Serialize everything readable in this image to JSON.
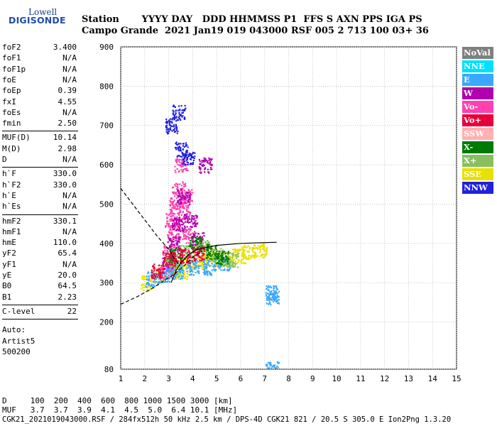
{
  "logo": {
    "line1": "Lowell",
    "line2": "DIGISONDE"
  },
  "header": {
    "row1": "Station       YYYY DAY   DDD HHMMSS P1  FFS S AXN PPS IGA PS",
    "row2": "Campo Grande  2021 Jan19 019 043000 RSF 005 2 713 100 03+ 36"
  },
  "sidebar": {
    "group1": [
      {
        "label": "foF2",
        "value": "3.400"
      },
      {
        "label": "foF1",
        "value": "N/A"
      },
      {
        "label": "foF1p",
        "value": "N/A"
      },
      {
        "label": "foE",
        "value": "N/A"
      },
      {
        "label": "foEp",
        "value": "0.39"
      },
      {
        "label": "fxI",
        "value": "4.55"
      },
      {
        "label": "foEs",
        "value": "N/A"
      },
      {
        "label": "fmin",
        "value": "2.50"
      }
    ],
    "group2": [
      {
        "label": "MUF(D)",
        "value": "10.14"
      },
      {
        "label": "M(D)",
        "value": "2.98"
      },
      {
        "label": "D",
        "value": "N/A"
      }
    ],
    "group3": [
      {
        "label": "h`F",
        "value": "330.0"
      },
      {
        "label": "h`F2",
        "value": "330.0"
      },
      {
        "label": "h`E",
        "value": "N/A"
      },
      {
        "label": "h`Es",
        "value": "N/A"
      }
    ],
    "group4": [
      {
        "label": "hmF2",
        "value": "330.1"
      },
      {
        "label": "hmF1",
        "value": "N/A"
      },
      {
        "label": "hmE",
        "value": "110.0"
      },
      {
        "label": "yF2",
        "value": "65.4"
      },
      {
        "label": "yF1",
        "value": "N/A"
      },
      {
        "label": "yE",
        "value": "20.0"
      },
      {
        "label": "B0",
        "value": "64.5"
      },
      {
        "label": "B1",
        "value": "2.23"
      }
    ],
    "clevel": {
      "label": "C-level",
      "value": "22"
    },
    "footer": [
      "Auto:",
      "Artist5",
      "500200"
    ]
  },
  "legend": [
    {
      "label": "NoVal",
      "color": "#808080"
    },
    {
      "label": "NNE",
      "color": "#00e0ff"
    },
    {
      "label": "E",
      "color": "#3aa8ff"
    },
    {
      "label": "W",
      "color": "#b000b0"
    },
    {
      "label": "Vo-",
      "color": "#ff40b0"
    },
    {
      "label": "Vo+",
      "color": "#e8003a"
    },
    {
      "label": "SSW",
      "color": "#ffb0b0"
    },
    {
      "label": "X-",
      "color": "#007a00"
    },
    {
      "label": "X+",
      "color": "#88c060"
    },
    {
      "label": "SSE",
      "color": "#e8e000"
    },
    {
      "label": "NNW",
      "color": "#2020e0"
    }
  ],
  "bottom": {
    "line1": "D     100  200  400  600  800 1000 1500 3000 [km]",
    "line2": "MUF   3.7  3.7  3.9  4.1  4.5  5.0  6.4 10.1 [MHz]",
    "line3": "CGK21_2021019043000.RSF / 284fx512h 50 kHz 2.5 km / DPS-4D CGK21 821 / 20.5 S 305.0 E Ion2Png 1.3.20"
  },
  "chart_data": {
    "type": "scatter",
    "xlim": [
      1,
      15
    ],
    "ylim": [
      80,
      900
    ],
    "x_ticks": [
      "1",
      "2",
      "3",
      "4",
      "5",
      "6",
      "7",
      "8",
      "9",
      "10",
      "11",
      "12",
      "13",
      "14",
      "15"
    ],
    "y_ticks": [
      "900",
      "800",
      "700",
      "600",
      "500",
      "400",
      "300",
      "200",
      "80"
    ],
    "grid": true,
    "series": [
      {
        "color": "#e8e000",
        "points": [
          [
            2.1,
            300
          ],
          [
            2.6,
            320
          ],
          [
            3.2,
            340
          ],
          [
            3.8,
            350
          ],
          [
            4.3,
            355
          ],
          [
            4.8,
            360
          ],
          [
            5.4,
            360
          ],
          [
            5.9,
            370
          ],
          [
            6.3,
            380
          ],
          [
            6.8,
            385
          ],
          [
            3.5,
            330
          ],
          [
            4.6,
            370
          ]
        ]
      },
      {
        "color": "#ff40b0",
        "points": [
          [
            2.9,
            330
          ],
          [
            3.0,
            380
          ],
          [
            3.2,
            430
          ],
          [
            3.3,
            500
          ],
          [
            3.4,
            540
          ],
          [
            3.6,
            480
          ],
          [
            3.8,
            420
          ],
          [
            3.1,
            460
          ],
          [
            3.5,
            600
          ],
          [
            3.7,
            520
          ]
        ]
      },
      {
        "color": "#b000b0",
        "points": [
          [
            3.0,
            350
          ],
          [
            3.2,
            400
          ],
          [
            3.4,
            450
          ],
          [
            3.6,
            520
          ],
          [
            3.9,
            460
          ],
          [
            4.2,
            410
          ],
          [
            4.5,
            600
          ]
        ]
      },
      {
        "color": "#3aa8ff",
        "points": [
          [
            2.3,
            310
          ],
          [
            2.8,
            320
          ],
          [
            3.3,
            330
          ],
          [
            4.0,
            340
          ],
          [
            4.7,
            340
          ],
          [
            5.3,
            350
          ],
          [
            7.3,
            265
          ],
          [
            7.3,
            275
          ],
          [
            7.3,
            85
          ]
        ]
      },
      {
        "color": "#88c060",
        "points": [
          [
            3.1,
            360
          ],
          [
            3.7,
            380
          ],
          [
            4.4,
            390
          ],
          [
            5.0,
            370
          ],
          [
            5.6,
            360
          ]
        ]
      },
      {
        "color": "#007a00",
        "points": [
          [
            3.3,
            370
          ],
          [
            4.1,
            400
          ],
          [
            4.8,
            380
          ],
          [
            5.2,
            365
          ]
        ]
      },
      {
        "color": "#e8003a",
        "points": [
          [
            2.5,
            330
          ],
          [
            3.0,
            360
          ],
          [
            3.6,
            370
          ],
          [
            4.2,
            375
          ]
        ]
      },
      {
        "color": "#2020e0",
        "points": [
          [
            3.1,
            700
          ],
          [
            3.4,
            735
          ],
          [
            3.5,
            640
          ],
          [
            3.8,
            620
          ]
        ]
      }
    ],
    "curves": [
      {
        "points": [
          [
            1.0,
            540
          ],
          [
            1.5,
            500
          ],
          [
            2.0,
            460
          ],
          [
            2.5,
            420
          ],
          [
            3.0,
            385
          ],
          [
            3.4,
            345
          ]
        ]
      },
      {
        "points": [
          [
            1.0,
            245
          ],
          [
            1.7,
            265
          ],
          [
            2.3,
            285
          ],
          [
            2.8,
            305
          ],
          [
            3.2,
            320
          ],
          [
            3.6,
            340
          ],
          [
            4.0,
            365
          ],
          [
            4.4,
            380
          ]
        ]
      },
      {
        "points": [
          [
            3.1,
            300
          ],
          [
            3.3,
            330
          ],
          [
            3.5,
            350
          ],
          [
            3.8,
            370
          ],
          [
            4.2,
            385
          ],
          [
            5.0,
            395
          ],
          [
            6.0,
            400
          ],
          [
            7.0,
            402
          ],
          [
            7.5,
            403
          ]
        ]
      }
    ]
  }
}
